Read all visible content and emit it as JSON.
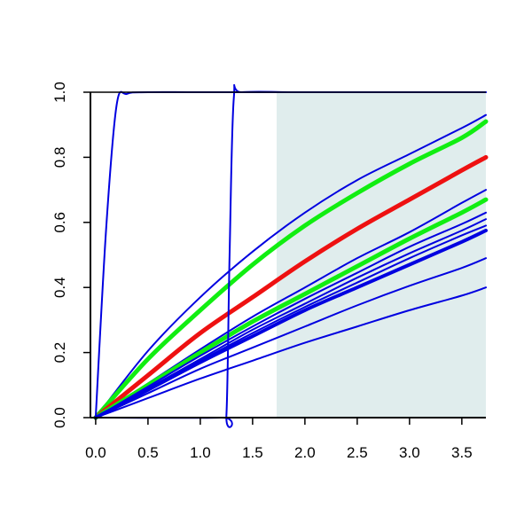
{
  "colors": {
    "background": "#ffffff",
    "shade": "#e0eded",
    "axis": "#000000",
    "blue": "#0000e0",
    "red": "#ee1111",
    "green": "#11ee11"
  },
  "chart_data": {
    "type": "line",
    "title": "",
    "xlabel": "",
    "ylabel": "",
    "xlim": [
      -0.05,
      3.73
    ],
    "ylim": [
      0.0,
      1.0
    ],
    "grid": false,
    "legend": "none",
    "x_ticks": [
      {
        "value": 0.0,
        "label": "0.0"
      },
      {
        "value": 0.5,
        "label": "0.5"
      },
      {
        "value": 1.0,
        "label": "1.0"
      },
      {
        "value": 1.5,
        "label": "1.5"
      },
      {
        "value": 2.0,
        "label": "2.0"
      },
      {
        "value": 2.5,
        "label": "2.5"
      },
      {
        "value": 3.0,
        "label": "3.0"
      },
      {
        "value": 3.5,
        "label": "3.5"
      }
    ],
    "y_ticks": [
      {
        "value": 0.0,
        "label": "0.0"
      },
      {
        "value": 0.2,
        "label": "0.2"
      },
      {
        "value": 0.4,
        "label": "0.4"
      },
      {
        "value": 0.6,
        "label": "0.6"
      },
      {
        "value": 0.8,
        "label": "0.8"
      },
      {
        "value": 1.0,
        "label": "1.0"
      }
    ],
    "shaded_region": {
      "x_start": 1.73,
      "x_end": 3.73,
      "y_start": 0.0,
      "y_end": 1.0
    },
    "x": [
      0.0,
      0.5,
      1.0,
      1.5,
      2.0,
      2.5,
      3.0,
      3.5,
      3.73
    ],
    "series": [
      {
        "values": [
          0.0,
          0.205,
          0.37,
          0.51,
          0.63,
          0.73,
          0.81,
          0.89,
          0.93
        ],
        "color": "blue",
        "width": 2
      },
      {
        "values": [
          0.0,
          0.18,
          0.33,
          0.47,
          0.59,
          0.69,
          0.78,
          0.86,
          0.91
        ],
        "color": "green",
        "width": 5
      },
      {
        "values": [
          0.0,
          0.13,
          0.26,
          0.37,
          0.48,
          0.58,
          0.67,
          0.76,
          0.8
        ],
        "color": "red",
        "width": 5
      },
      {
        "values": [
          0.0,
          0.105,
          0.21,
          0.31,
          0.4,
          0.49,
          0.57,
          0.66,
          0.7
        ],
        "color": "blue",
        "width": 2
      },
      {
        "values": [
          0.0,
          0.1,
          0.2,
          0.295,
          0.38,
          0.465,
          0.55,
          0.63,
          0.67
        ],
        "color": "green",
        "width": 5
      },
      {
        "values": [
          0.0,
          0.095,
          0.19,
          0.28,
          0.365,
          0.445,
          0.525,
          0.595,
          0.63
        ],
        "color": "blue",
        "width": 2
      },
      {
        "values": [
          0.0,
          0.09,
          0.18,
          0.27,
          0.35,
          0.43,
          0.505,
          0.575,
          0.61
        ],
        "color": "blue",
        "width": 2
      },
      {
        "values": [
          0.0,
          0.087,
          0.175,
          0.26,
          0.34,
          0.415,
          0.49,
          0.56,
          0.59
        ],
        "color": "blue",
        "width": 2
      },
      {
        "values": [
          0.0,
          0.085,
          0.17,
          0.25,
          0.33,
          0.4,
          0.47,
          0.54,
          0.575
        ],
        "color": "blue",
        "width": 4
      },
      {
        "values": [
          0.0,
          0.075,
          0.15,
          0.215,
          0.28,
          0.345,
          0.405,
          0.46,
          0.49
        ],
        "color": "blue",
        "width": 2
      },
      {
        "values": [
          0.0,
          0.06,
          0.12,
          0.175,
          0.23,
          0.28,
          0.33,
          0.375,
          0.4
        ],
        "color": "blue",
        "width": 2
      },
      {
        "values": [
          0.0,
          0.58,
          0.96,
          0.995,
          1.0,
          1.0,
          1.0,
          1.0,
          1.0
        ],
        "x": [
          0.0,
          0.1,
          0.2,
          0.3,
          0.5,
          1.0,
          2.0,
          3.0,
          3.73
        ],
        "color": "blue",
        "width": 2
      },
      {
        "values": [
          0.0,
          0.0,
          0.01,
          0.5,
          0.98,
          1.0,
          1.0,
          1.0,
          1.0
        ],
        "x": [
          0.0,
          1.2,
          1.25,
          1.28,
          1.32,
          1.4,
          2.0,
          3.0,
          3.73
        ],
        "color": "blue",
        "width": 2
      }
    ]
  }
}
